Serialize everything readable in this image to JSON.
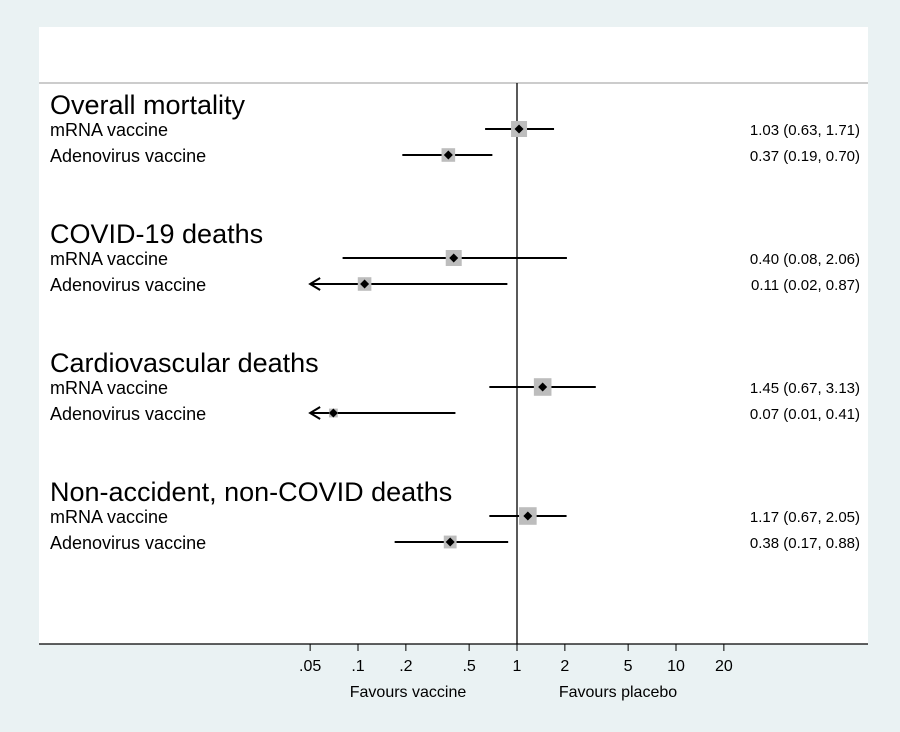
{
  "chart_data": {
    "type": "forest",
    "scale": "log",
    "reference_line": 1,
    "x_ticks": [
      {
        "value": 0.05,
        "label": ".05"
      },
      {
        "value": 0.1,
        "label": ".1"
      },
      {
        "value": 0.2,
        "label": ".2"
      },
      {
        "value": 0.5,
        "label": ".5"
      },
      {
        "value": 1,
        "label": "1"
      },
      {
        "value": 2,
        "label": "2"
      },
      {
        "value": 5,
        "label": "5"
      },
      {
        "value": 10,
        "label": "10"
      },
      {
        "value": 20,
        "label": "20"
      }
    ],
    "direction_labels": {
      "left": "Favours vaccine",
      "right": "Favours placebo"
    },
    "groups": [
      {
        "name": "Overall mortality",
        "rows": [
          {
            "label": "mRNA vaccine",
            "estimate": 1.03,
            "lower": 0.63,
            "upper": 1.71,
            "text": "1.03 (0.63, 1.71)",
            "weight": 1.0,
            "truncated": false
          },
          {
            "label": "Adenovirus vaccine",
            "estimate": 0.37,
            "lower": 0.19,
            "upper": 0.7,
            "text": "0.37 (0.19, 0.70)",
            "weight": 0.85,
            "truncated": false
          }
        ]
      },
      {
        "name": "COVID-19 deaths",
        "rows": [
          {
            "label": "mRNA vaccine",
            "estimate": 0.4,
            "lower": 0.08,
            "upper": 2.06,
            "text": "0.40 (0.08, 2.06)",
            "weight": 1.0,
            "truncated": false
          },
          {
            "label": "Adenovirus vaccine",
            "estimate": 0.11,
            "lower": 0.02,
            "upper": 0.87,
            "text": "0.11 (0.02, 0.87)",
            "weight": 0.85,
            "truncated": true
          }
        ]
      },
      {
        "name": "Cardiovascular deaths",
        "rows": [
          {
            "label": "mRNA vaccine",
            "estimate": 1.45,
            "lower": 0.67,
            "upper": 3.13,
            "text": "1.45 (0.67, 3.13)",
            "weight": 1.1,
            "truncated": false
          },
          {
            "label": "Adenovirus vaccine",
            "estimate": 0.07,
            "lower": 0.01,
            "upper": 0.41,
            "text": "0.07 (0.01, 0.41)",
            "weight": 0.55,
            "truncated": true
          }
        ]
      },
      {
        "name": "Non-accident, non-COVID deaths",
        "rows": [
          {
            "label": "mRNA vaccine",
            "estimate": 1.17,
            "lower": 0.67,
            "upper": 2.05,
            "text": "1.17 (0.67, 2.05)",
            "weight": 1.1,
            "truncated": false
          },
          {
            "label": "Adenovirus vaccine",
            "estimate": 0.38,
            "lower": 0.17,
            "upper": 0.88,
            "text": "0.38 (0.17, 0.88)",
            "weight": 0.8,
            "truncated": false
          }
        ]
      }
    ],
    "colors": {
      "background": "#eaf2f3",
      "panel": "#ffffff",
      "marker_box": "#bdbdbd",
      "line": "#000000"
    }
  }
}
